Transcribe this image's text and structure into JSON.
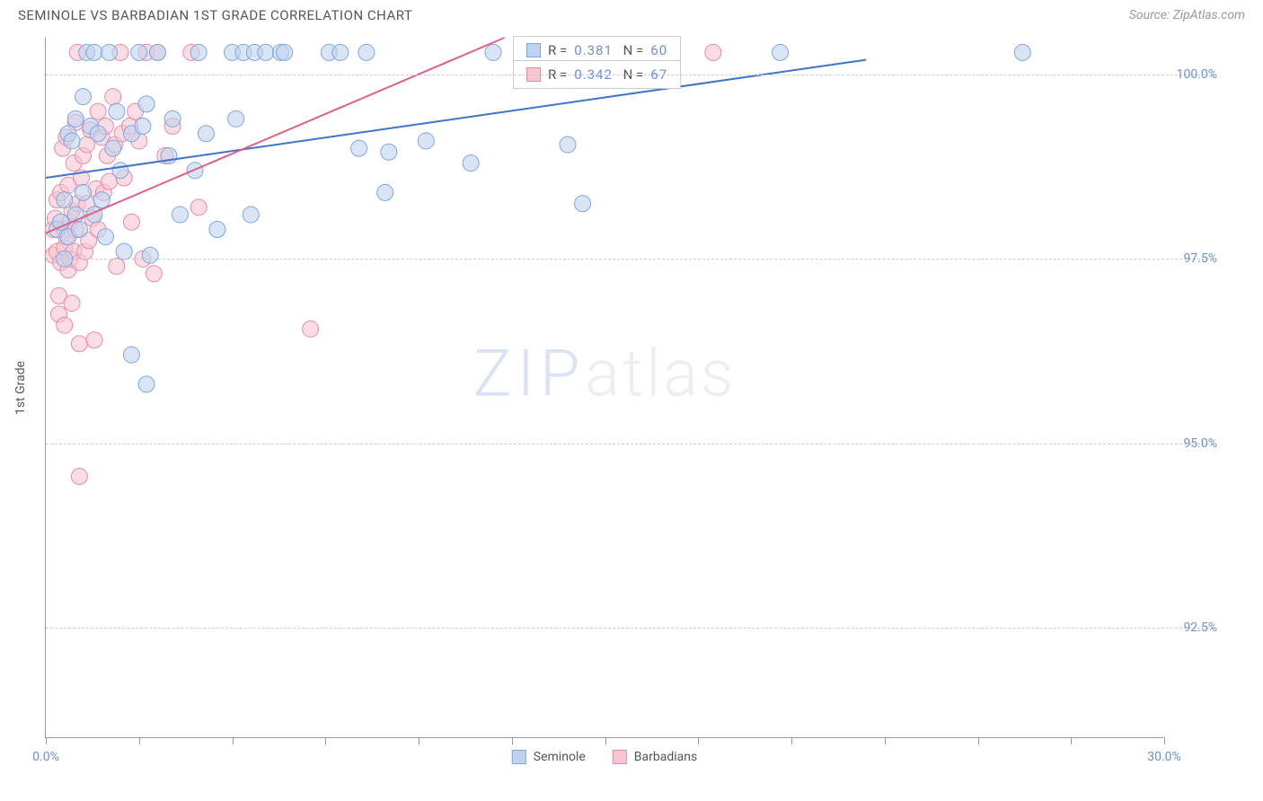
{
  "header": {
    "title": "SEMINOLE VS BARBADIAN 1ST GRADE CORRELATION CHART",
    "source": "Source: ZipAtlas.com"
  },
  "chart": {
    "type": "scatter",
    "yaxis_title": "1st Grade",
    "background_color": "#ffffff",
    "grid_color": "#cccccc",
    "axis_color": "#999999",
    "tick_label_color": "#6b8fd4",
    "xlim": [
      0,
      30
    ],
    "ylim": [
      91,
      100.5
    ],
    "xticks": [
      0,
      2.5,
      5,
      7.5,
      10,
      12.5,
      15,
      17.5,
      20,
      22.5,
      25,
      27.5,
      30
    ],
    "xtick_labels": {
      "0": "0.0%",
      "30": "30.0%"
    },
    "yticks": [
      92.5,
      95.0,
      97.5,
      100.0
    ],
    "ytick_labels": [
      "92.5%",
      "95.0%",
      "97.5%",
      "100.0%"
    ],
    "marker_radius": 9,
    "marker_stroke_width": 1,
    "series": [
      {
        "name": "Seminole",
        "fill": "#bfd3ef",
        "stroke": "#7fa6de",
        "fill_opacity": 0.6,
        "R": "0.381",
        "N": "60",
        "trend": {
          "x1": 0,
          "y1": 98.6,
          "x2": 22,
          "y2": 100.2,
          "color": "#3e74c9",
          "width": 2
        },
        "points": [
          [
            0.3,
            97.9
          ],
          [
            0.4,
            98.0
          ],
          [
            0.5,
            97.5
          ],
          [
            0.5,
            98.3
          ],
          [
            0.6,
            99.2
          ],
          [
            0.6,
            97.8
          ],
          [
            0.7,
            99.1
          ],
          [
            0.8,
            98.1
          ],
          [
            0.8,
            99.4
          ],
          [
            0.9,
            97.9
          ],
          [
            1.0,
            99.7
          ],
          [
            1.0,
            98.4
          ],
          [
            1.1,
            100.3
          ],
          [
            1.2,
            99.3
          ],
          [
            1.3,
            98.1
          ],
          [
            1.3,
            100.3
          ],
          [
            1.4,
            99.2
          ],
          [
            1.5,
            98.3
          ],
          [
            1.6,
            97.8
          ],
          [
            1.7,
            100.3
          ],
          [
            1.8,
            99.0
          ],
          [
            1.9,
            99.5
          ],
          [
            2.0,
            98.7
          ],
          [
            2.1,
            97.6
          ],
          [
            2.3,
            99.2
          ],
          [
            2.3,
            96.2
          ],
          [
            2.5,
            100.3
          ],
          [
            2.6,
            99.3
          ],
          [
            2.7,
            95.8
          ],
          [
            2.7,
            99.6
          ],
          [
            2.8,
            97.55
          ],
          [
            3.0,
            100.3
          ],
          [
            3.3,
            98.9
          ],
          [
            3.4,
            99.4
          ],
          [
            3.6,
            98.1
          ],
          [
            4.0,
            98.7
          ],
          [
            4.1,
            100.3
          ],
          [
            4.3,
            99.2
          ],
          [
            4.6,
            97.9
          ],
          [
            5.0,
            100.3
          ],
          [
            5.1,
            99.4
          ],
          [
            5.3,
            100.3
          ],
          [
            5.5,
            98.1
          ],
          [
            5.6,
            100.3
          ],
          [
            5.9,
            100.3
          ],
          [
            6.3,
            100.3
          ],
          [
            6.4,
            100.3
          ],
          [
            7.6,
            100.3
          ],
          [
            7.9,
            100.3
          ],
          [
            8.4,
            99.0
          ],
          [
            8.6,
            100.3
          ],
          [
            9.1,
            98.4
          ],
          [
            9.2,
            98.95
          ],
          [
            10.2,
            99.1
          ],
          [
            11.4,
            98.8
          ],
          [
            12.0,
            100.3
          ],
          [
            14.0,
            99.05
          ],
          [
            14.4,
            98.25
          ],
          [
            19.7,
            100.3
          ],
          [
            26.2,
            100.3
          ]
        ]
      },
      {
        "name": "Barbadians",
        "fill": "#f6c6d2",
        "stroke": "#e98ba3",
        "fill_opacity": 0.6,
        "R": "0.342",
        "N": "67",
        "trend": {
          "x1": 0,
          "y1": 97.85,
          "x2": 12.3,
          "y2": 100.5,
          "color": "#e26084",
          "width": 2
        },
        "points": [
          [
            0.2,
            97.55
          ],
          [
            0.2,
            97.9
          ],
          [
            0.25,
            98.05
          ],
          [
            0.3,
            98.3
          ],
          [
            0.3,
            97.6
          ],
          [
            0.35,
            97.0
          ],
          [
            0.35,
            96.75
          ],
          [
            0.4,
            98.4
          ],
          [
            0.4,
            97.45
          ],
          [
            0.45,
            99.0
          ],
          [
            0.5,
            97.65
          ],
          [
            0.5,
            97.9
          ],
          [
            0.5,
            96.6
          ],
          [
            0.55,
            99.15
          ],
          [
            0.55,
            97.8
          ],
          [
            0.6,
            97.35
          ],
          [
            0.6,
            98.5
          ],
          [
            0.65,
            98.0
          ],
          [
            0.65,
            97.5
          ],
          [
            0.7,
            98.15
          ],
          [
            0.7,
            96.9
          ],
          [
            0.75,
            97.6
          ],
          [
            0.75,
            98.8
          ],
          [
            0.8,
            97.9
          ],
          [
            0.8,
            99.35
          ],
          [
            0.85,
            98.25
          ],
          [
            0.85,
            100.3
          ],
          [
            0.9,
            97.45
          ],
          [
            0.9,
            96.35
          ],
          [
            0.9,
            94.55
          ],
          [
            0.95,
            98.6
          ],
          [
            1.0,
            98.9
          ],
          [
            1.05,
            97.6
          ],
          [
            1.1,
            99.05
          ],
          [
            1.1,
            98.25
          ],
          [
            1.15,
            97.75
          ],
          [
            1.2,
            99.25
          ],
          [
            1.25,
            98.05
          ],
          [
            1.3,
            96.4
          ],
          [
            1.35,
            98.45
          ],
          [
            1.4,
            99.5
          ],
          [
            1.4,
            97.9
          ],
          [
            1.5,
            99.15
          ],
          [
            1.55,
            98.4
          ],
          [
            1.6,
            99.3
          ],
          [
            1.65,
            98.9
          ],
          [
            1.7,
            98.55
          ],
          [
            1.8,
            99.7
          ],
          [
            1.85,
            99.05
          ],
          [
            1.9,
            97.4
          ],
          [
            2.0,
            100.3
          ],
          [
            2.05,
            99.2
          ],
          [
            2.1,
            98.6
          ],
          [
            2.25,
            99.3
          ],
          [
            2.3,
            98.0
          ],
          [
            2.4,
            99.5
          ],
          [
            2.5,
            99.1
          ],
          [
            2.6,
            97.5
          ],
          [
            2.7,
            100.3
          ],
          [
            2.9,
            97.3
          ],
          [
            3.0,
            100.3
          ],
          [
            3.2,
            98.9
          ],
          [
            3.4,
            99.3
          ],
          [
            3.9,
            100.3
          ],
          [
            4.1,
            98.2
          ],
          [
            7.1,
            96.55
          ],
          [
            17.9,
            100.3
          ]
        ]
      }
    ],
    "stat_boxes": [
      {
        "series_idx": 0,
        "top_pct": 0
      },
      {
        "series_idx": 1,
        "top_pct": 3.4
      }
    ],
    "legend": {
      "items": [
        {
          "label": "Seminole",
          "fill": "#bfd3ef",
          "stroke": "#7fa6de"
        },
        {
          "label": "Barbadians",
          "fill": "#f6c6d2",
          "stroke": "#e98ba3"
        }
      ]
    },
    "watermark": {
      "zip": "ZIP",
      "atlas": "atlas"
    }
  }
}
